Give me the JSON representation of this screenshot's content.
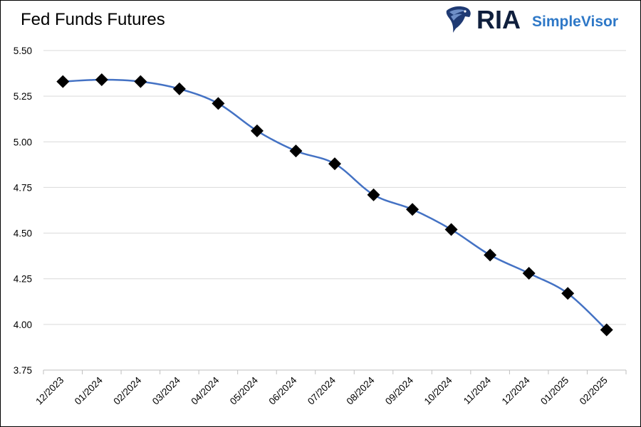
{
  "chart_data": {
    "type": "line",
    "title": "Fed Funds Futures",
    "categories": [
      "12/2023",
      "01/2024",
      "02/2024",
      "03/2024",
      "04/2024",
      "05/2024",
      "06/2024",
      "07/2024",
      "08/2024",
      "09/2024",
      "10/2024",
      "11/2024",
      "12/2024",
      "01/2025",
      "02/2025"
    ],
    "series": [
      {
        "values": [
          5.33,
          5.34,
          5.33,
          5.29,
          5.21,
          5.06,
          4.95,
          4.88,
          4.71,
          4.63,
          4.52,
          4.38,
          4.28,
          4.17,
          3.97
        ]
      }
    ],
    "ylim": [
      3.75,
      5.5
    ],
    "yticks": [
      "3.75",
      "4.00",
      "4.25",
      "4.50",
      "4.75",
      "5.00",
      "5.25",
      "5.50"
    ],
    "grid": true,
    "xlabel": "",
    "ylabel": "",
    "colors": {
      "line": "#4472C4",
      "marker": "#000000",
      "grid": "#d9d9d9"
    }
  },
  "logo": {
    "ria_text": "RIA",
    "brand_text": "SimpleVisor",
    "ria_color": "#0f1f3d",
    "brand_color": "#2e78c7"
  }
}
